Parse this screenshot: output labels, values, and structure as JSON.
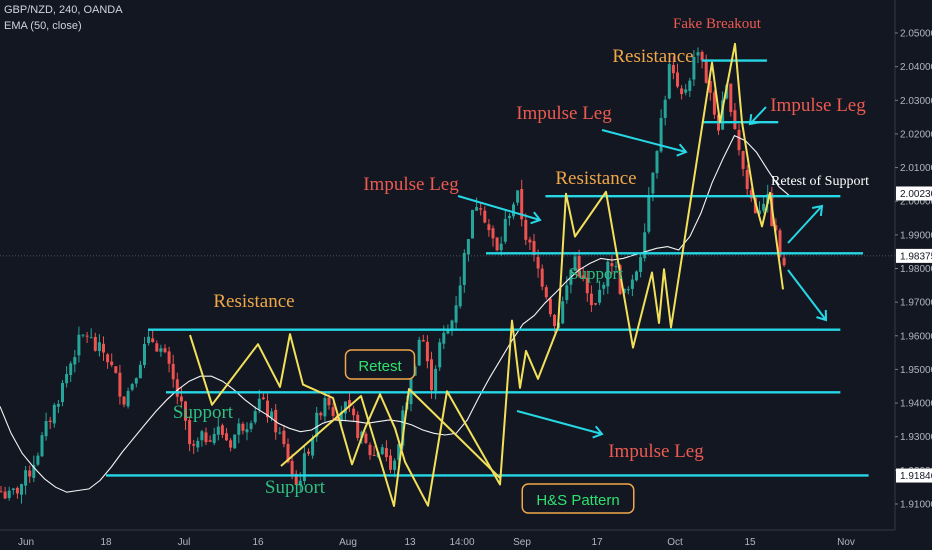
{
  "header": {
    "symbol_line": "GBP/NZD, 240, OANDA",
    "indicator_line": "EMA (50, close)"
  },
  "colors": {
    "background": "#131722",
    "level_line": "#26d7e6",
    "up_candle": "#26a69a",
    "down_candle": "#ef5350",
    "zigzag": "#f2e05a",
    "ema": "#ffffff",
    "resistance_text": "#f0a848",
    "impulse_text": "#ec5a50",
    "support_text": "#2fbf7f",
    "box_border": "#f0a848",
    "box_text": "#2fe06f"
  },
  "chart_data": {
    "type": "candlestick",
    "x_tick_labels": [
      "Jun",
      "18",
      "Jul",
      "16",
      "Aug",
      "13",
      "14:00",
      "Sep",
      "17",
      "Oct",
      "15",
      "Nov"
    ],
    "y_tick_labels": [
      "2.05000",
      "2.04000",
      "2.03000",
      "2.02000",
      "2.01000",
      "2.00000",
      "1.99000",
      "1.98000",
      "1.97000",
      "1.96000",
      "1.95000",
      "1.94000",
      "1.93000",
      "1.92000",
      "1.91000"
    ],
    "ylim": [
      1.9045,
      2.0575
    ],
    "price_badges": [
      {
        "label": "2.00230",
        "value": 2.0023
      },
      {
        "label": "1.98375",
        "value": 1.98375
      },
      {
        "label": "1.91846",
        "value": 1.91846
      }
    ],
    "path": [
      [
        1.914,
        1.9092
      ],
      [
        1.912,
        1.9105
      ],
      [
        1.915,
        1.9122
      ],
      [
        1.919,
        1.9168
      ],
      [
        1.926,
        1.9258
      ],
      [
        1.934,
        1.9335
      ],
      [
        1.941,
        1.9405
      ],
      [
        1.949,
        1.9488
      ],
      [
        1.957,
        1.9545
      ],
      [
        1.961,
        1.9565
      ],
      [
        1.956,
        1.9572
      ],
      [
        1.955,
        1.9525
      ],
      [
        1.948,
        1.9458
      ],
      [
        1.941,
        1.9405
      ],
      [
        1.948,
        1.9478
      ],
      [
        1.956,
        1.9552
      ],
      [
        1.959,
        1.9594
      ],
      [
        1.955,
        1.9528
      ],
      [
        1.947,
        1.9455
      ],
      [
        1.938,
        1.9362
      ],
      [
        1.925,
        1.9222
      ],
      [
        1.929,
        1.9302
      ],
      [
        1.931,
        1.9335
      ],
      [
        1.932,
        1.9326
      ],
      [
        1.928,
        1.9284
      ],
      [
        1.933,
        1.9302
      ],
      [
        1.935,
        1.9366
      ],
      [
        1.941,
        1.9421
      ],
      [
        1.937,
        1.9385
      ],
      [
        1.932,
        1.9318
      ],
      [
        1.924,
        1.9215
      ],
      [
        1.915,
        1.9095
      ],
      [
        1.925,
        1.9255
      ],
      [
        1.934,
        1.9355
      ],
      [
        1.943,
        1.9432
      ],
      [
        1.937,
        1.9365
      ],
      [
        1.939,
        1.9398
      ],
      [
        1.934,
        1.9322
      ],
      [
        1.928,
        1.9282
      ],
      [
        1.924,
        1.9225
      ],
      [
        1.928,
        1.9285
      ],
      [
        1.918,
        1.9158
      ],
      [
        1.935,
        1.9328
      ],
      [
        1.948,
        1.9472
      ],
      [
        1.962,
        1.9612
      ],
      [
        1.945,
        1.9455
      ],
      [
        1.958,
        1.9572
      ],
      [
        1.962,
        1.9635
      ],
      [
        1.975,
        1.9762
      ],
      [
        1.992,
        1.9935
      ],
      [
        2.002,
        2.0002
      ],
      [
        1.992,
        1.9905
      ],
      [
        1.984,
        1.9855
      ],
      [
        1.996,
        1.9955
      ],
      [
        2.002,
        2.0002
      ],
      [
        1.989,
        1.9875
      ],
      [
        1.981,
        1.9775
      ],
      [
        1.974,
        1.9715
      ],
      [
        1.962,
        1.9565
      ],
      [
        1.972,
        1.9745
      ],
      [
        1.984,
        1.9835
      ],
      [
        1.975,
        1.9735
      ],
      [
        1.966,
        1.9645
      ],
      [
        1.977,
        1.9765
      ],
      [
        1.983,
        1.9825
      ],
      [
        1.972,
        1.9705
      ],
      [
        1.974,
        1.9755
      ],
      [
        1.986,
        1.9875
      ],
      [
        2.007,
        2.0085
      ],
      [
        2.023,
        2.0245
      ],
      [
        2.041,
        2.0412
      ],
      [
        2.029,
        2.0275
      ],
      [
        2.037,
        2.0382
      ],
      [
        2.047,
        2.0475
      ],
      [
        2.033,
        2.0325
      ],
      [
        2.022,
        2.0215
      ],
      [
        2.034,
        2.0315
      ],
      [
        2.019,
        2.0195
      ],
      [
        2.004,
        2.0045
      ],
      [
        1.997,
        1.9925
      ],
      [
        2.002,
        2.0035
      ],
      [
        1.99,
        1.9905
      ],
      [
        1.978,
        1.9738
      ]
    ],
    "zigzag": [
      1.9602,
      1.9395,
      1.9575,
      1.9448,
      1.9605,
      1.9455,
      1.9415,
      1.9218,
      1.9325,
      1.9426,
      1.9325,
      1.9225,
      1.9095,
      1.9435,
      1.9325,
      1.9158,
      1.9645,
      1.9445,
      1.9555,
      1.9472,
      1.9625,
      2.0022,
      1.9895,
      2.0028,
      1.9565,
      1.9788,
      1.9638,
      1.9798,
      1.9625,
      2.0412,
      2.0235,
      2.0468,
      2.0235,
      2.0012,
      1.9925,
      2.0025,
      1.9738
    ],
    "ema": [
      1.939,
      1.931,
      1.925,
      1.921,
      1.9175,
      1.915,
      1.9135,
      1.914,
      1.9145,
      1.917,
      1.921,
      1.9255,
      1.9295,
      1.9335,
      1.9375,
      1.941,
      1.944,
      1.9465,
      1.948,
      1.948,
      1.9465,
      1.944,
      1.941,
      1.9385,
      1.9365,
      1.934,
      1.9325,
      1.9315,
      1.932,
      1.934,
      1.935,
      1.9348,
      1.9345,
      1.934,
      1.9345,
      1.935,
      1.9345,
      1.9335,
      1.932,
      1.931,
      1.9305,
      1.931,
      1.935,
      1.9415,
      1.9475,
      1.953,
      1.9585,
      1.9635,
      1.966,
      1.9698,
      1.973,
      1.9765,
      1.9795,
      1.9815,
      1.983,
      1.9825,
      1.983,
      1.984,
      1.985,
      1.986,
      1.9865,
      1.9855,
      1.9895,
      1.9965,
      2.0055,
      2.0128,
      2.0195,
      2.018,
      2.0145,
      2.0093,
      2.0043,
      2.0015
    ],
    "horizontal_levels": [
      {
        "value": 2.0418,
        "start_date": "Oct 6",
        "end_date": "Oct 18"
      },
      {
        "value": 2.0235,
        "start_date": "Oct 6",
        "end_date": "Oct 20"
      },
      {
        "value": 2.0015,
        "start_date": "Sep 6",
        "end_date": "Oct 31"
      },
      {
        "value": 1.9845,
        "start_date": "Aug 29",
        "end_date": "Nov 4"
      },
      {
        "value": 1.9618,
        "start_date": "Jun 25",
        "end_date": "Oct 31"
      },
      {
        "value": 1.9432,
        "start_date": "Jun 28",
        "end_date": "Oct 31"
      },
      {
        "value": 1.9185,
        "start_date": "Jun 18",
        "end_date": "Nov 5"
      }
    ],
    "annotations": [
      {
        "text": "Fake Breakout",
        "kind": "impulse"
      },
      {
        "text": "Resistance",
        "kind": "resistance"
      },
      {
        "text": "Impulse Leg",
        "kind": "impulse"
      },
      {
        "text": "Impulse Leg",
        "kind": "impulse"
      },
      {
        "text": "Retest of Support",
        "kind": "white"
      },
      {
        "text": "Impulse Leg",
        "kind": "impulse"
      },
      {
        "text": "Resistance",
        "kind": "resistance"
      },
      {
        "text": "Support",
        "kind": "support"
      },
      {
        "text": "Resistance",
        "kind": "resistance"
      },
      {
        "text": "Support",
        "kind": "support"
      },
      {
        "text": "Retest",
        "kind": "box"
      },
      {
        "text": "Impulse Leg",
        "kind": "impulse"
      },
      {
        "text": "Support",
        "kind": "support"
      },
      {
        "text": "H&S Pattern",
        "kind": "box"
      }
    ]
  }
}
